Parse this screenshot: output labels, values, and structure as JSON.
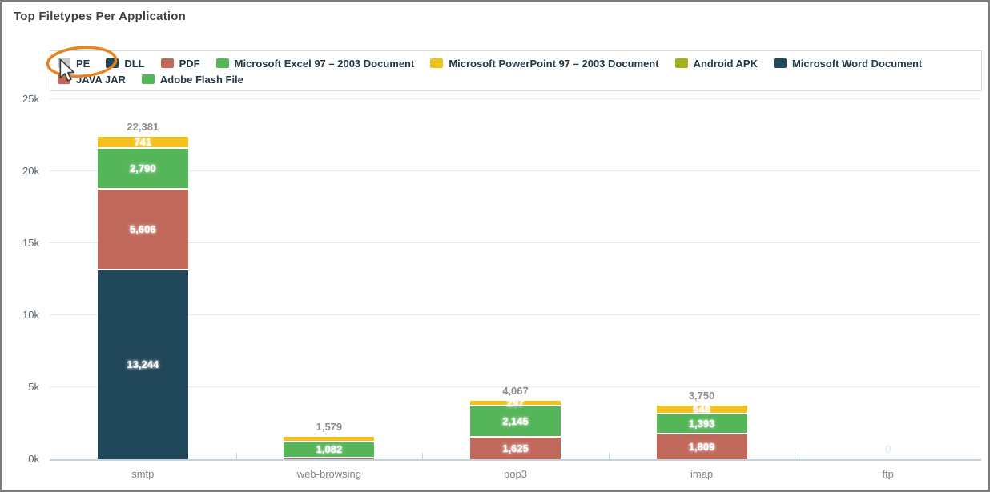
{
  "header": {
    "title": "Top Filetypes Per Application"
  },
  "annotation": {
    "highlighted_legend_item": "PE",
    "highlight_color": "#e8831d",
    "cursor": "arrow-pointer-over-PE-checkbox"
  },
  "chart_data": {
    "type": "bar",
    "stacked": true,
    "title": "Top Filetypes Per Application",
    "legend_position": "top",
    "grid": true,
    "xlabel": "",
    "ylabel": "",
    "ylim": [
      0,
      25000
    ],
    "y_ticks": [
      {
        "label": "0k",
        "value": 0
      },
      {
        "label": "5k",
        "value": 5000
      },
      {
        "label": "10k",
        "value": 10000
      },
      {
        "label": "15k",
        "value": 15000
      },
      {
        "label": "20k",
        "value": 20000
      },
      {
        "label": "25k",
        "value": 25000
      }
    ],
    "legend": [
      {
        "label": "PE",
        "color": "#c9c9c9",
        "enabled": false
      },
      {
        "label": "DLL",
        "color": "#21475a",
        "enabled": true
      },
      {
        "label": "PDF",
        "color": "#c0695b",
        "enabled": true
      },
      {
        "label": "Microsoft Excel 97 – 2003 Document",
        "color": "#55b559",
        "enabled": true
      },
      {
        "label": "Microsoft PowerPoint 97 – 2003 Document",
        "color": "#f0c11f",
        "enabled": true
      },
      {
        "label": "Android APK",
        "color": "#a4b11e",
        "enabled": true
      },
      {
        "label": "Microsoft Word Document",
        "color": "#21475a",
        "enabled": true
      },
      {
        "label": "JAVA JAR",
        "color": "#c0695b",
        "enabled": true
      },
      {
        "label": "Adobe Flash File",
        "color": "#55b559",
        "enabled": true
      }
    ],
    "categories": [
      {
        "name": "smtp",
        "total": 22381,
        "total_label": "22,381",
        "faint_total": false,
        "segments": [
          {
            "series": "DLL",
            "value": 13244,
            "label": "13,244",
            "color": "#21475a"
          },
          {
            "series": "PDF",
            "value": 5606,
            "label": "5,606",
            "color": "#c0695b"
          },
          {
            "series": "Microsoft Excel 97 – 2003 Document",
            "value": 2790,
            "label": "2,790",
            "color": "#55b559"
          },
          {
            "series": "Microsoft PowerPoint 97 – 2003 Document",
            "value": 741,
            "label": "741",
            "color": "#f0c11f"
          }
        ]
      },
      {
        "name": "web-browsing",
        "total": 1579,
        "total_label": "1,579",
        "faint_total": false,
        "segments": [
          {
            "series": "PDF",
            "value": 190,
            "label": "",
            "color": "#c0695b",
            "estimated": true
          },
          {
            "series": "Microsoft Excel 97 – 2003 Document",
            "value": 1082,
            "label": "1,082",
            "color": "#55b559"
          },
          {
            "series": "Microsoft PowerPoint 97 – 2003 Document",
            "value": 307,
            "label": "",
            "color": "#f0c11f",
            "estimated": true
          }
        ]
      },
      {
        "name": "pop3",
        "total": 4067,
        "total_label": "4,067",
        "faint_total": false,
        "segments": [
          {
            "series": "PDF",
            "value": 1625,
            "label": "1,625",
            "color": "#c0695b"
          },
          {
            "series": "Microsoft Excel 97 – 2003 Document",
            "value": 2145,
            "label": "2,145",
            "color": "#55b559"
          },
          {
            "series": "Microsoft PowerPoint 97 – 2003 Document",
            "value": 297,
            "label": "297",
            "color": "#f0c11f"
          }
        ]
      },
      {
        "name": "imap",
        "total": 3750,
        "total_label": "3,750",
        "faint_total": false,
        "segments": [
          {
            "series": "PDF",
            "value": 1809,
            "label": "1,809",
            "color": "#c0695b"
          },
          {
            "series": "Microsoft Excel 97 – 2003 Document",
            "value": 1393,
            "label": "1,393",
            "color": "#55b559"
          },
          {
            "series": "Microsoft PowerPoint 97 – 2003 Document",
            "value": 548,
            "label": "548",
            "color": "#f0c11f"
          }
        ]
      },
      {
        "name": "ftp",
        "total": 0,
        "total_label": "0",
        "faint_total": true,
        "segments": []
      }
    ]
  }
}
